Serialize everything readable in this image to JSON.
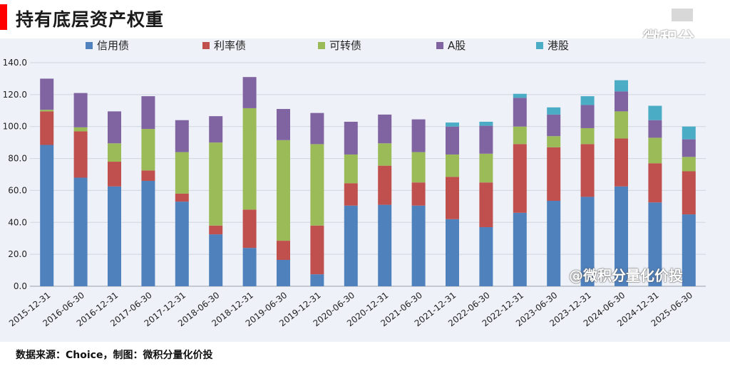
{
  "page": {
    "title": "持有底层资产权重",
    "footer": "数据来源：Choice，制图：微积分量化价投",
    "logo_text": "微积分",
    "watermark": "@微积分量化价投"
  },
  "colors": {
    "信用债": "#4f81bd",
    "利率债": "#c0504d",
    "可转债": "#9bbb59",
    "A股": "#8064a2",
    "港股": "#4bacc6",
    "title_bar": "#ff0000"
  },
  "chart_data": {
    "type": "bar",
    "stacked": true,
    "title": "持有底层资产权重",
    "xlabel": "",
    "ylabel": "",
    "ylim": [
      0,
      140
    ],
    "yticks": [
      "0.0",
      "20.0",
      "40.0",
      "60.0",
      "80.0",
      "100.0",
      "120.0",
      "140.0"
    ],
    "grid": true,
    "legend_position": "top",
    "categories": [
      "2015-12-31",
      "2016-06-30",
      "2016-12-31",
      "2017-06-30",
      "2017-12-31",
      "2018-06-30",
      "2018-12-31",
      "2019-06-30",
      "2019-12-31",
      "2020-06-30",
      "2020-12-31",
      "2021-06-30",
      "2021-12-31",
      "2022-06-30",
      "2022-12-31",
      "2023-06-30",
      "2023-12-31",
      "2024-06-30",
      "2024-12-31",
      "2025-06-30"
    ],
    "series": [
      {
        "name": "信用债",
        "values": [
          88.5,
          68,
          62.5,
          66,
          53,
          32.5,
          24,
          16.5,
          7.5,
          50.5,
          51,
          50.5,
          42,
          37,
          46,
          53.5,
          56,
          62.5,
          52.5,
          45
        ]
      },
      {
        "name": "利率债",
        "values": [
          21,
          29,
          15.5,
          6.5,
          5,
          5.5,
          24,
          12,
          30.5,
          14,
          24.5,
          14.5,
          26.5,
          28,
          43,
          33.5,
          33,
          30,
          24.5,
          27
        ]
      },
      {
        "name": "可转债",
        "values": [
          1,
          2.5,
          11.5,
          26,
          26,
          52,
          63.5,
          63,
          51,
          18,
          14,
          19,
          14,
          18,
          11,
          7,
          10,
          17,
          16,
          9
        ]
      },
      {
        "name": "A股",
        "values": [
          19.5,
          21.5,
          20,
          20.5,
          20,
          16.5,
          19.5,
          19.5,
          19.5,
          20.5,
          18,
          20.5,
          17.5,
          17.5,
          18,
          13.5,
          14.5,
          12.5,
          11,
          11
        ]
      },
      {
        "name": "港股",
        "values": [
          0,
          0,
          0,
          0,
          0,
          0,
          0,
          0,
          0,
          0,
          0,
          0,
          2.5,
          2.5,
          2.5,
          4.5,
          5.5,
          7,
          9,
          8
        ]
      }
    ]
  }
}
